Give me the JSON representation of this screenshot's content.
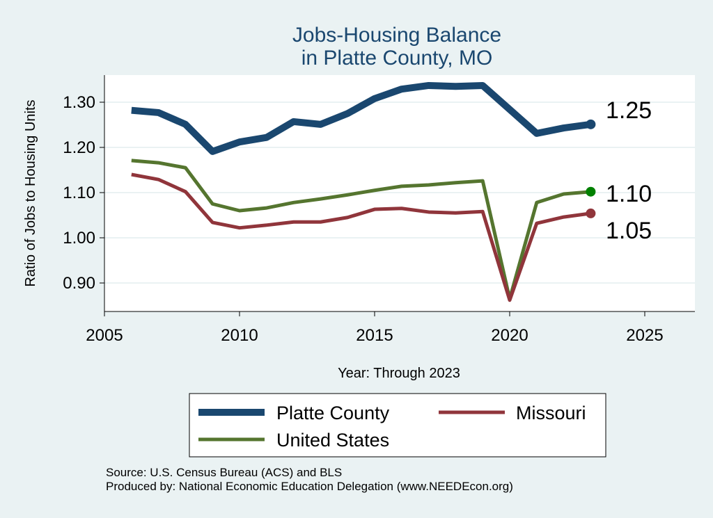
{
  "chart_data": {
    "type": "line",
    "title": [
      "Jobs-Housing Balance",
      "in Platte County, MO"
    ],
    "xlabel": "Year: Through 2023",
    "ylabel": "Ratio of Jobs to Housing Units",
    "xlim": [
      2005,
      2026.5
    ],
    "ylim": [
      0.84,
      1.36
    ],
    "xticks": [
      2005,
      2010,
      2015,
      2020,
      2025
    ],
    "yticks": [
      0.9,
      1.0,
      1.1,
      1.2,
      1.3
    ],
    "ytick_labels": [
      "0.90",
      "1.00",
      "1.10",
      "1.20",
      "1.30"
    ],
    "grid": true,
    "legend_position": "bottom",
    "x": [
      2006,
      2007,
      2008,
      2009,
      2010,
      2011,
      2012,
      2013,
      2014,
      2015,
      2016,
      2017,
      2018,
      2019,
      2020,
      2021,
      2022,
      2023
    ],
    "series": [
      {
        "name": "Platte County",
        "color": "#1a476f",
        "end_label": "1.25",
        "end_dot_color": "#1a476f",
        "values": [
          1.282,
          1.277,
          1.251,
          1.191,
          1.212,
          1.222,
          1.257,
          1.251,
          1.275,
          1.308,
          1.329,
          1.337,
          1.335,
          1.337,
          null,
          1.231,
          1.243,
          1.251
        ]
      },
      {
        "name": "Missouri",
        "color": "#90353b",
        "end_label": "1.05",
        "end_dot_color": "#90353b",
        "values": [
          1.14,
          1.129,
          1.102,
          1.034,
          1.022,
          1.028,
          1.035,
          1.035,
          1.045,
          1.063,
          1.065,
          1.057,
          1.055,
          1.058,
          0.862,
          1.032,
          1.046,
          1.054
        ]
      },
      {
        "name": "United States",
        "color": "#55752f",
        "end_label": "1.10",
        "end_dot_color": "#008000",
        "values": [
          1.171,
          1.166,
          1.155,
          1.075,
          1.06,
          1.066,
          1.078,
          1.086,
          1.095,
          1.105,
          1.114,
          1.117,
          1.122,
          1.126,
          0.865,
          1.078,
          1.097,
          1.102
        ]
      }
    ]
  },
  "footer": {
    "source": "Source: U.S. Census Bureau (ACS) and BLS",
    "producer": "Produced by: National Economic Education Delegation (www.NEEDEcon.org)"
  }
}
